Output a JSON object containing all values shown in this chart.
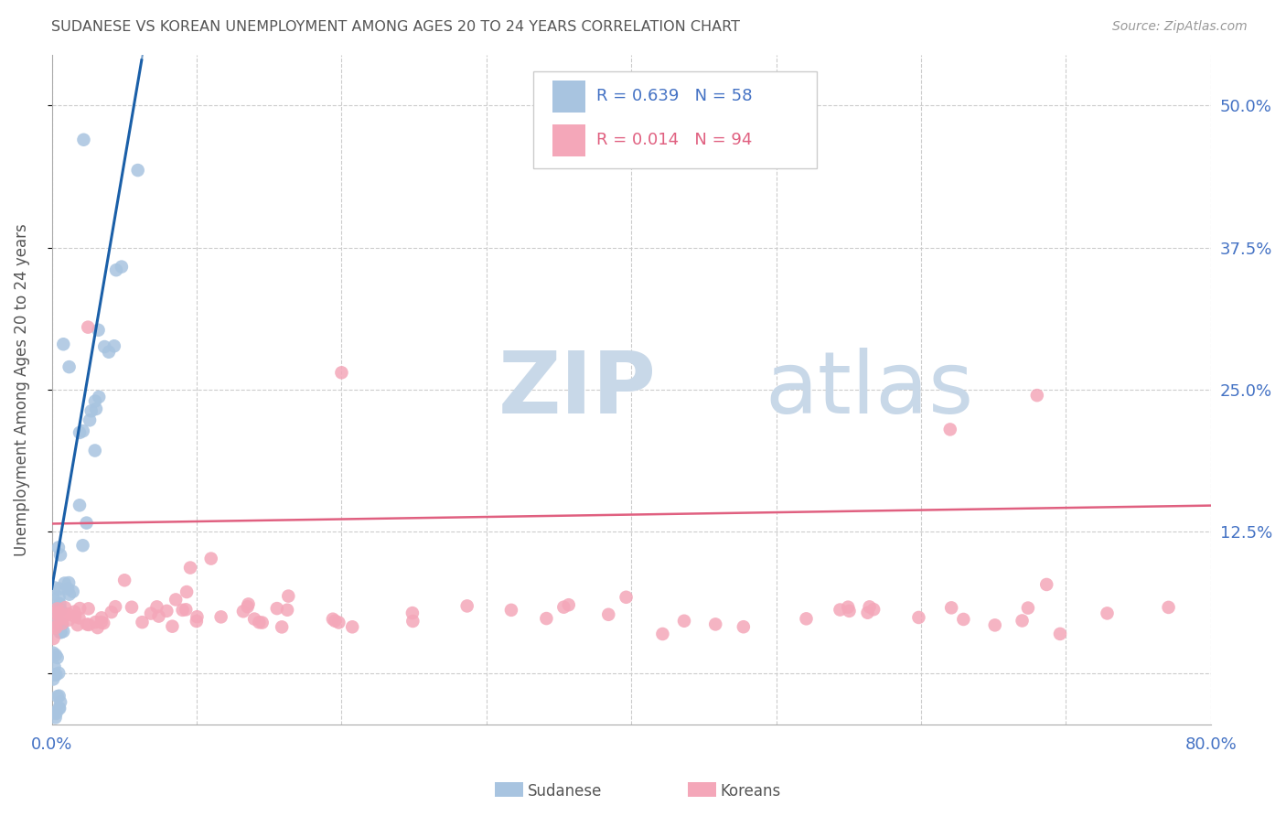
{
  "title": "SUDANESE VS KOREAN UNEMPLOYMENT AMONG AGES 20 TO 24 YEARS CORRELATION CHART",
  "source": "Source: ZipAtlas.com",
  "ylabel": "Unemployment Among Ages 20 to 24 years",
  "xlim": [
    0.0,
    0.8
  ],
  "ylim": [
    -0.045,
    0.545
  ],
  "yticks": [
    0.0,
    0.125,
    0.25,
    0.375,
    0.5
  ],
  "ytick_labels": [
    "",
    "12.5%",
    "25.0%",
    "37.5%",
    "50.0%"
  ],
  "xticks": [
    0.0,
    0.1,
    0.2,
    0.3,
    0.4,
    0.5,
    0.6,
    0.7,
    0.8
  ],
  "sudanese_color": "#a8c4e0",
  "korean_color": "#f4a7b9",
  "sudanese_line_color": "#1a5fa8",
  "korean_line_color": "#e06080",
  "watermark_zip_color": "#c8d8e8",
  "watermark_atlas_color": "#c8d8e8",
  "background_color": "#ffffff",
  "grid_color": "#cccccc",
  "title_color": "#555555",
  "axis_label_color": "#555555",
  "tick_color": "#4472c4",
  "sud_slope": 7.5,
  "sud_intercept": 0.075,
  "kor_slope": 0.02,
  "kor_intercept": 0.132
}
